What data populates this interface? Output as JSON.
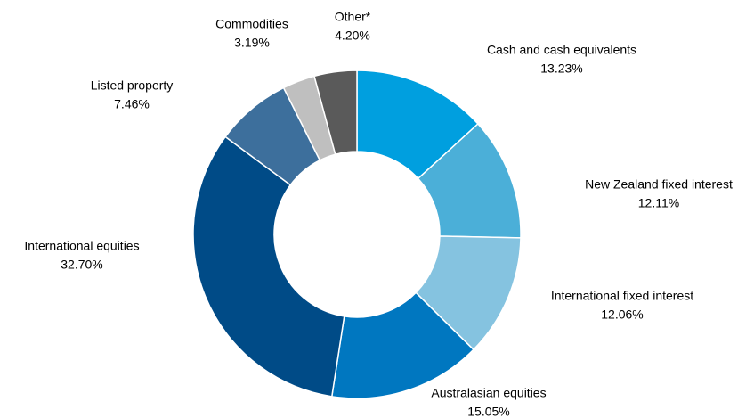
{
  "chart_data": {
    "type": "donut",
    "categories": [
      "Cash and cash equivalents",
      "New Zealand fixed interest",
      "International fixed interest",
      "Australasian equities",
      "International equities",
      "Listed property",
      "Commodities",
      "Other*"
    ],
    "values": [
      13.23,
      12.11,
      12.06,
      15.05,
      32.7,
      7.46,
      3.19,
      4.2
    ],
    "value_labels": [
      "13.23%",
      "12.11%",
      "12.06%",
      "15.05%",
      "32.70%",
      "7.46%",
      "3.19%",
      "4.20%"
    ],
    "colors": [
      "#009fdf",
      "#4bafd8",
      "#85c3e0",
      "#0077c0",
      "#004b87",
      "#3d6f9c",
      "#bfbfbf",
      "#5a5a5a"
    ]
  }
}
